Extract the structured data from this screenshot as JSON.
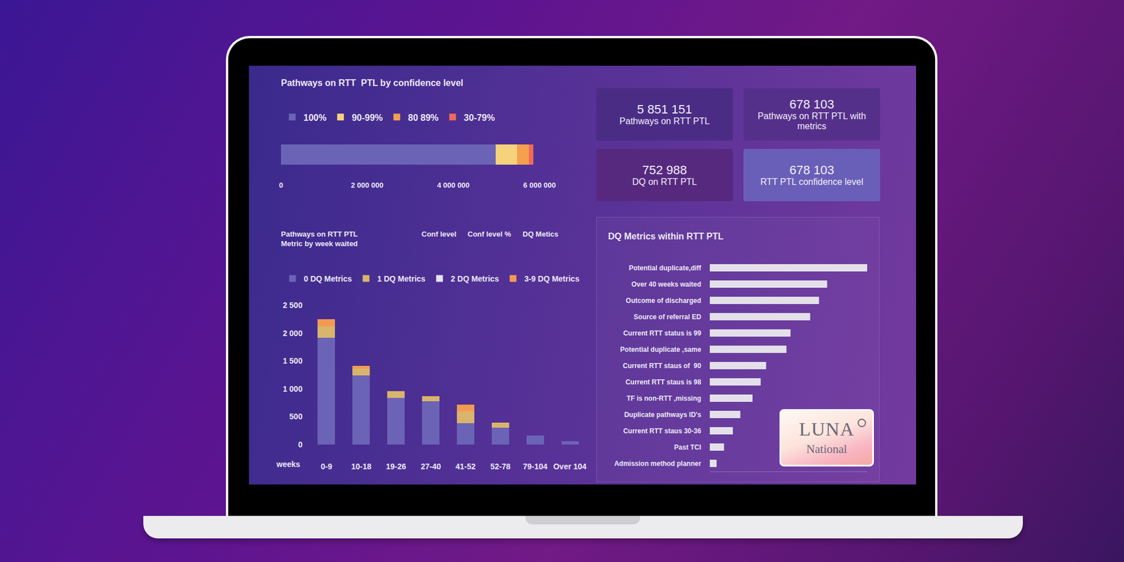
{
  "screen": {
    "cards": [
      {
        "value": "5 851 151",
        "label": "Pathways on RTT PTL"
      },
      {
        "value": "678 103",
        "label": "Pathways on RTT PTL with metrics"
      },
      {
        "value": "752 988",
        "label": "DQ on RTT PTL"
      },
      {
        "value": "678 103",
        "label": "RTT PTL confidence level"
      }
    ],
    "logo": {
      "name": "LUNA",
      "subtitle": "National"
    }
  },
  "chart_data": [
    {
      "type": "bar",
      "title": "Pathways on RTT  PTL by confidence level",
      "orientation": "horizontal",
      "stacked": true,
      "legend": "top-left",
      "tick_labels": "x",
      "grid": false,
      "categories": [
        null
      ],
      "series": [
        {
          "name": "100%",
          "color": "#6b63b5",
          "values": [
            4980000
          ]
        },
        {
          "name": "90-99%",
          "color": "#f6d27a",
          "values": [
            500000
          ]
        },
        {
          "name": "80 89%",
          "color": "#f5a04e",
          "values": [
            270000
          ]
        },
        {
          "name": "30-79%",
          "color": "#ef6a5a",
          "values": [
            100000
          ]
        }
      ],
      "xlim": [
        0,
        6000000
      ],
      "xticks": [
        0,
        {
          "value": 2000000,
          "label": "2 000 000"
        },
        {
          "value": 4000000,
          "label": "4 000 000"
        },
        {
          "value": 6000000,
          "label": "6 000 000"
        }
      ]
    },
    {
      "type": "bar",
      "title": "Pathways on RTT  PTL Metric by week waited",
      "annotations": [
        "Conf level",
        "Conf level %",
        "DQ Metics"
      ],
      "xlabel": "weeks",
      "stacked": true,
      "legend": "top-left",
      "grid": false,
      "categories": [
        "0-9",
        "10-18",
        "19-26",
        "27-40",
        "41-52",
        "52-78",
        "79-104",
        "Over 104"
      ],
      "series": [
        {
          "name": "0 DQ Metrics",
          "color": "#6b63b5",
          "values": [
            1920,
            1245,
            835,
            780,
            385,
            305,
            160,
            65
          ]
        },
        {
          "name": "1 DQ Metrics",
          "color": "#d9b46c",
          "values": [
            200,
            120,
            120,
            90,
            210,
            90,
            0,
            0
          ]
        },
        {
          "name": "2 DQ Metrics",
          "color": "#e6e2ee",
          "values": [
            0,
            0,
            0,
            0,
            0,
            0,
            0,
            0
          ]
        },
        {
          "name": "3-9 DQ Metrics",
          "color": "#f39a52",
          "values": [
            130,
            50,
            0,
            0,
            120,
            0,
            0,
            0
          ]
        }
      ],
      "ylim": [
        0,
        2500
      ],
      "yticks": [
        0,
        500,
        {
          "value": 1000,
          "label": "1 000"
        },
        {
          "value": 1500,
          "label": "1 500"
        },
        {
          "value": 2000,
          "label": "2 000"
        },
        {
          "value": 2500,
          "label": "2 500"
        }
      ]
    },
    {
      "type": "bar",
      "title": "DQ Metrics within RTT PTL",
      "orientation": "horizontal",
      "tick_labels": "y",
      "grid": false,
      "color": "#e4e0ea",
      "categories": [
        "Potential duplicate,diff",
        "Over 40 weeks waited",
        "Outcome of discharged",
        "Source of referral ED",
        "Current RTT status is 99",
        "Potential duplicate ,same",
        "Current RTT staus of  90",
        "Current RTT staus is 98",
        "TF is non-RTT ,missing",
        "Duplicate pathways ID's",
        "Current RTT staus 30-36",
        "Past TCI",
        "Admission method planner"
      ],
      "values": [
        232,
        173,
        161,
        148,
        119,
        113,
        83,
        75,
        63,
        45,
        34,
        21,
        10
      ],
      "xlim": [
        0,
        232
      ],
      "xticks": []
    }
  ]
}
